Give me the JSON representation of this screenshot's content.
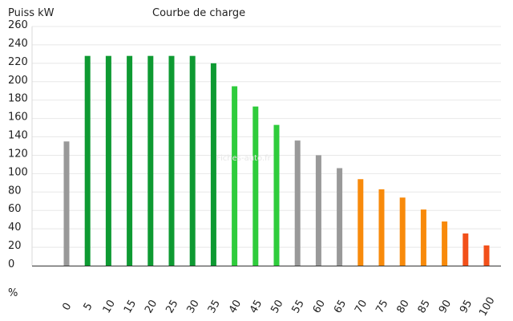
{
  "chart_data": {
    "type": "bar",
    "title": "Courbe de charge",
    "ylabel": "Puiss kW",
    "xlabel": "%",
    "watermark": "Fiches-auto.fr",
    "ylim": [
      0,
      260
    ],
    "yticks": [
      0,
      20,
      40,
      60,
      80,
      100,
      120,
      140,
      160,
      180,
      200,
      220,
      240,
      260
    ],
    "grid": true,
    "categories": [
      "0",
      "5",
      "10",
      "15",
      "20",
      "25",
      "30",
      "35",
      "40",
      "45",
      "50",
      "55",
      "60",
      "65",
      "70",
      "75",
      "80",
      "85",
      "90",
      "95",
      "100"
    ],
    "values": [
      135,
      228,
      228,
      228,
      228,
      228,
      228,
      220,
      195,
      173,
      153,
      136,
      120,
      106,
      94,
      83,
      74,
      61,
      48,
      35,
      22
    ],
    "colors": [
      "#999999",
      "#0e9a32",
      "#0e9a32",
      "#0e9a32",
      "#0e9a32",
      "#0e9a32",
      "#0e9a32",
      "#0e9a32",
      "#2fcc3c",
      "#2fcc3c",
      "#2fcc3c",
      "#999999",
      "#999999",
      "#999999",
      "#f88a0b",
      "#f88a0b",
      "#f88a0b",
      "#f88a0b",
      "#f88a0b",
      "#f2501a",
      "#f2501a"
    ]
  }
}
